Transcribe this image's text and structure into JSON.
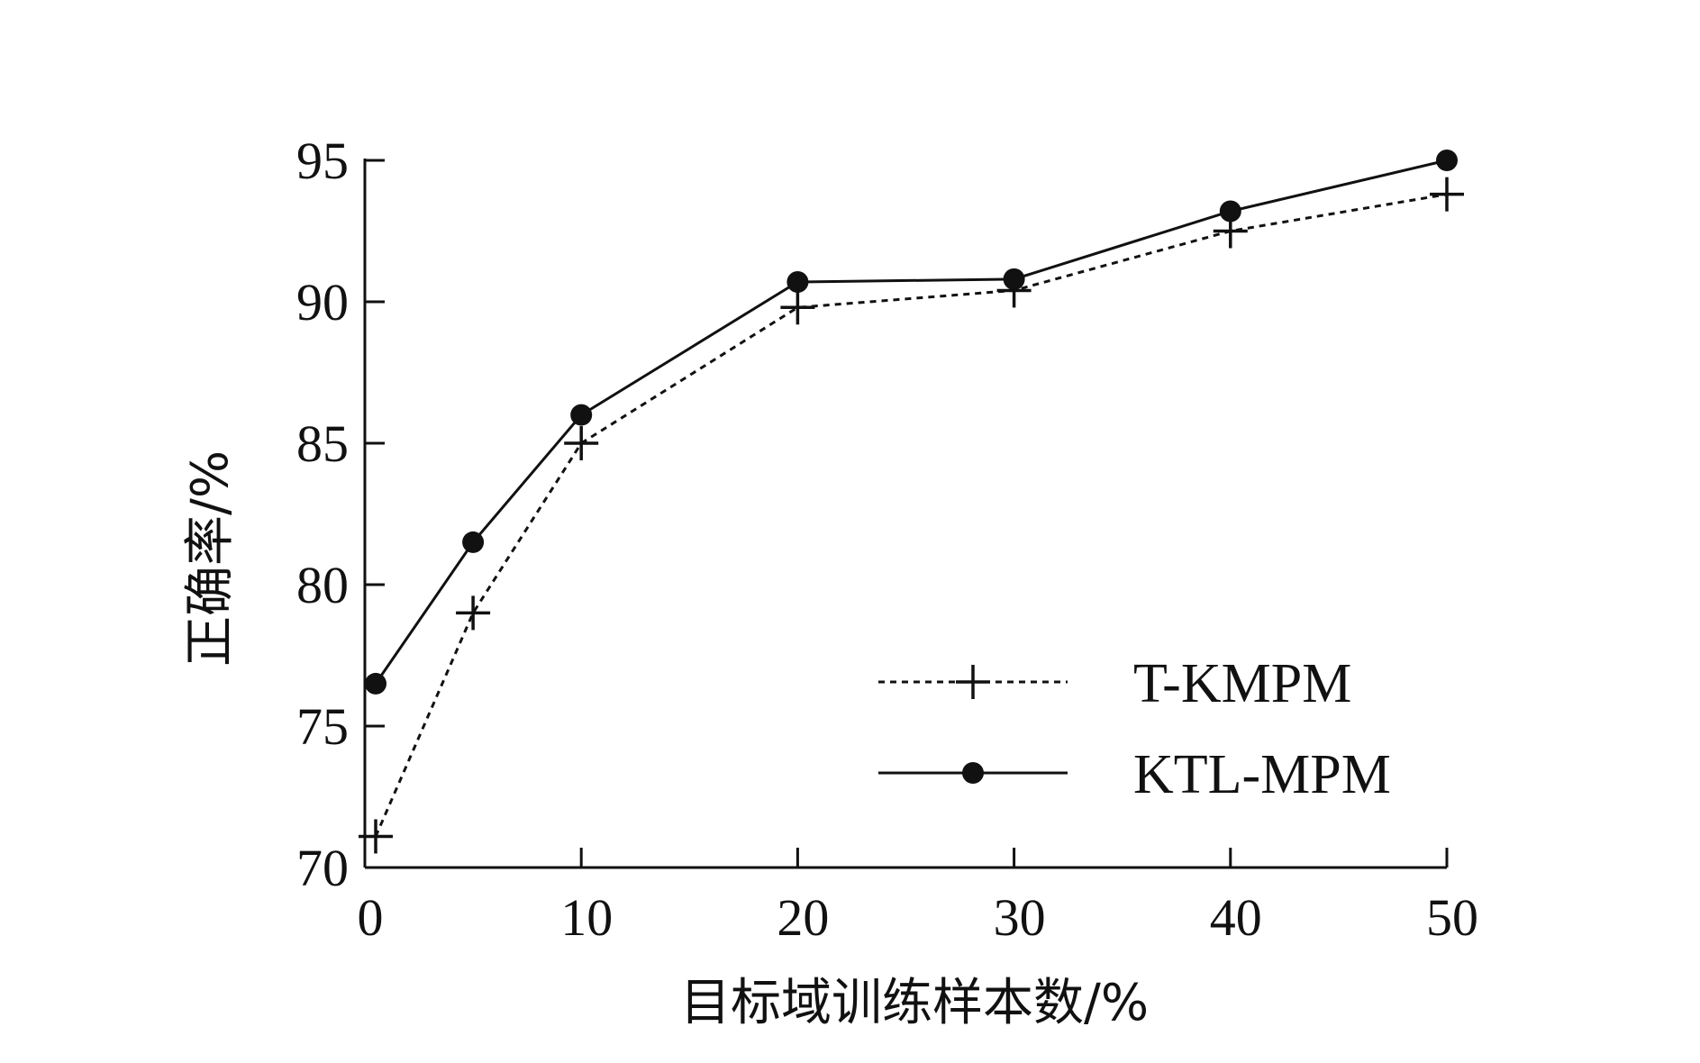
{
  "chart_data": {
    "type": "line",
    "title": "",
    "xlabel": "目标域训练样本数/%",
    "ylabel": "正确率/%",
    "xlim": [
      0,
      50
    ],
    "ylim": [
      70,
      95
    ],
    "xticks": [
      "0",
      "10",
      "20",
      "30",
      "40",
      "50"
    ],
    "yticks": [
      "70",
      "75",
      "80",
      "85",
      "90",
      "95"
    ],
    "grid": false,
    "legend_position": "lower-right",
    "series": [
      {
        "name": "T-KMPM",
        "style": "dotted",
        "marker": "plus",
        "color": "#111111",
        "points": [
          {
            "x": 0.5,
            "y": 71.1
          },
          {
            "x": 5,
            "y": 79.0
          },
          {
            "x": 10,
            "y": 85.0
          },
          {
            "x": 20,
            "y": 89.8
          },
          {
            "x": 30,
            "y": 90.4
          },
          {
            "x": 40,
            "y": 92.5
          },
          {
            "x": 50,
            "y": 93.8
          }
        ]
      },
      {
        "name": "KTL-MPM",
        "style": "solid",
        "marker": "circle",
        "color": "#111111",
        "points": [
          {
            "x": 0.5,
            "y": 76.5
          },
          {
            "x": 5,
            "y": 81.5
          },
          {
            "x": 10,
            "y": 86.0
          },
          {
            "x": 20,
            "y": 90.7
          },
          {
            "x": 30,
            "y": 90.8
          },
          {
            "x": 40,
            "y": 93.2
          },
          {
            "x": 50,
            "y": 95.0
          }
        ]
      }
    ]
  }
}
